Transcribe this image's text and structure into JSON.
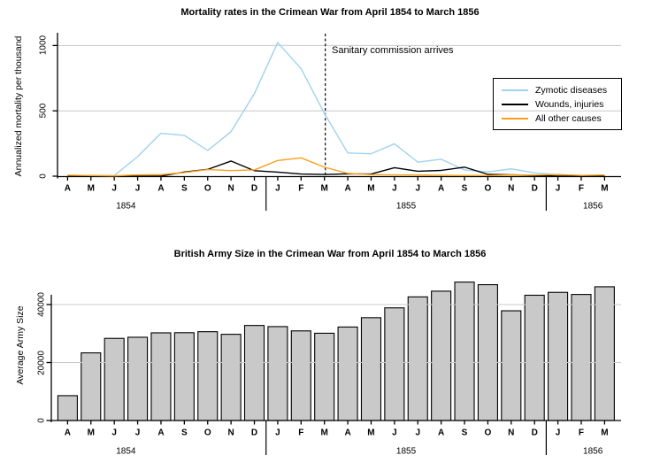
{
  "colors": {
    "zymotic": "#9fd2ee",
    "wounds": "#000000",
    "other": "#f9a01b",
    "grid": "#c8c8c8",
    "axis": "#000000",
    "bar_fill": "#c9c9c9",
    "bar_stroke": "#000000",
    "annotation_line": "#000000"
  },
  "chart_data": [
    {
      "type": "line",
      "title": "Mortality rates in the Crimean War from April 1854 to March 1856",
      "ylabel": "Annualized mortality per thousand",
      "ylim": [
        0,
        1100
      ],
      "yticks": [
        0,
        500,
        1000
      ],
      "grid": true,
      "legend_position": "right",
      "x_months": [
        "A",
        "M",
        "J",
        "J",
        "A",
        "S",
        "O",
        "N",
        "D",
        "J",
        "F",
        "M",
        "A",
        "M",
        "J",
        "J",
        "A",
        "S",
        "O",
        "N",
        "D",
        "J",
        "F",
        "M"
      ],
      "years": [
        {
          "label": "1854",
          "center_month_index": 2.5,
          "divider_after_index": 8
        },
        {
          "label": "1855",
          "center_month_index": 14.5,
          "divider_after_index": 20
        },
        {
          "label": "1856",
          "center_month_index": 22.5
        }
      ],
      "annotation": {
        "text": "Sanitary commission arrives",
        "month_index": 11
      },
      "series": [
        {
          "name": "Zymotic diseases",
          "color": "zymotic",
          "values": [
            1.4,
            6.2,
            4.7,
            150.0,
            328.5,
            312.2,
            197.0,
            340.6,
            631.5,
            1022.8,
            822.8,
            480.3,
            177.5,
            171.8,
            247.6,
            107.5,
            129.9,
            47.5,
            32.8,
            56.4,
            25.3,
            11.4,
            6.6,
            3.9
          ]
        },
        {
          "name": "Wounds, injuries",
          "color": "wounds",
          "values": [
            0.0,
            0.0,
            0.3,
            0.0,
            0.4,
            32.1,
            51.7,
            115.8,
            41.7,
            30.7,
            16.3,
            12.8,
            17.9,
            16.6,
            64.5,
            37.7,
            44.1,
            69.4,
            13.6,
            10.5,
            5.0,
            0.5,
            0.0,
            0.0
          ]
        },
        {
          "name": "All other causes",
          "color": "other",
          "values": [
            7.0,
            4.6,
            2.5,
            9.6,
            11.9,
            27.7,
            50.1,
            42.8,
            48.0,
            120.0,
            140.1,
            68.6,
            21.2,
            12.5,
            9.6,
            9.3,
            6.7,
            5.0,
            4.6,
            10.1,
            7.8,
            13.0,
            5.2,
            9.1
          ]
        }
      ]
    },
    {
      "type": "bar",
      "title": "British Army Size in the Crimean War from April 1854 to March 1856",
      "ylabel": "Average Army Size",
      "ylim": [
        0,
        48000
      ],
      "yticks": [
        0,
        20000,
        40000
      ],
      "grid": true,
      "x_months": [
        "A",
        "M",
        "J",
        "J",
        "A",
        "S",
        "O",
        "N",
        "D",
        "J",
        "F",
        "M",
        "A",
        "M",
        "J",
        "J",
        "A",
        "S",
        "O",
        "N",
        "D",
        "J",
        "F",
        "M"
      ],
      "years": [
        {
          "label": "1854",
          "center_month_index": 2.5,
          "divider_after_index": 8
        },
        {
          "label": "1855",
          "center_month_index": 14.5,
          "divider_after_index": 20
        },
        {
          "label": "1856",
          "center_month_index": 22.5
        }
      ],
      "values": [
        8571,
        23333,
        28333,
        28722,
        30246,
        30290,
        30643,
        29736,
        32779,
        32393,
        30919,
        30107,
        32252,
        35473,
        38863,
        42647,
        44614,
        47751,
        46852,
        37853,
        43217,
        44212,
        43485,
        46140
      ]
    }
  ]
}
